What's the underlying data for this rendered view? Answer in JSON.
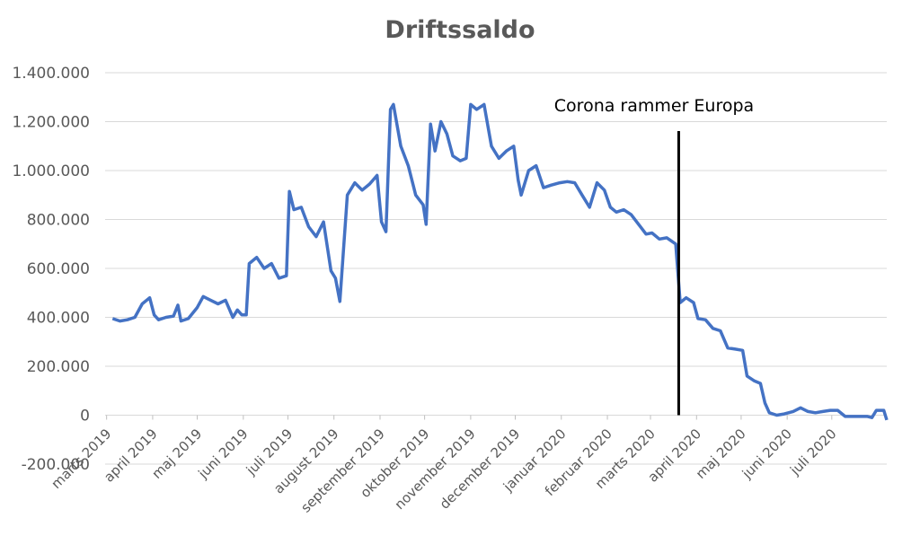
{
  "chart_data": {
    "type": "line",
    "title": "Driftssaldo",
    "xlabel": "",
    "ylabel": "",
    "ylim": [
      -200000,
      1400000
    ],
    "y_ticks": [
      1400000,
      1200000,
      1000000,
      800000,
      600000,
      400000,
      200000,
      0,
      -200000
    ],
    "y_tick_labels": [
      "1.400.000",
      "1.200.000",
      "1.000.000",
      "800.000",
      "600.000",
      "400.000",
      "200.000",
      "0",
      "-200.000"
    ],
    "x_tick_labels": [
      "marts 2019",
      "april 2019",
      "maj 2019",
      "juni 2019",
      "juli 2019",
      "august 2019",
      "september 2019",
      "oktober 2019",
      "november 2019",
      "december 2019",
      "januar 2020",
      "februar 2020",
      "marts 2020",
      "april 2020",
      "maj 2020",
      "juni 2020",
      "juli 2020"
    ],
    "grid": "horizontal",
    "line_color": "#4472C4",
    "annotation": {
      "label": "Corona rammer Europa",
      "x": "2020-03-20",
      "line_color": "#000000"
    },
    "series": [
      {
        "points": [
          [
            "2019-03-05",
            395000
          ],
          [
            "2019-03-10",
            385000
          ],
          [
            "2019-03-15",
            390000
          ],
          [
            "2019-03-20",
            400000
          ],
          [
            "2019-03-25",
            455000
          ],
          [
            "2019-03-30",
            480000
          ],
          [
            "2019-04-02",
            410000
          ],
          [
            "2019-04-05",
            390000
          ],
          [
            "2019-04-10",
            400000
          ],
          [
            "2019-04-15",
            405000
          ],
          [
            "2019-04-18",
            450000
          ],
          [
            "2019-04-20",
            385000
          ],
          [
            "2019-04-25",
            395000
          ],
          [
            "2019-05-01",
            440000
          ],
          [
            "2019-05-05",
            485000
          ],
          [
            "2019-05-10",
            470000
          ],
          [
            "2019-05-15",
            455000
          ],
          [
            "2019-05-20",
            470000
          ],
          [
            "2019-05-25",
            400000
          ],
          [
            "2019-05-28",
            430000
          ],
          [
            "2019-05-31",
            410000
          ],
          [
            "2019-06-03",
            410000
          ],
          [
            "2019-06-05",
            620000
          ],
          [
            "2019-06-10",
            645000
          ],
          [
            "2019-06-15",
            600000
          ],
          [
            "2019-06-20",
            620000
          ],
          [
            "2019-06-25",
            560000
          ],
          [
            "2019-06-30",
            570000
          ],
          [
            "2019-07-02",
            915000
          ],
          [
            "2019-07-05",
            840000
          ],
          [
            "2019-07-10",
            850000
          ],
          [
            "2019-07-15",
            770000
          ],
          [
            "2019-07-20",
            730000
          ],
          [
            "2019-07-25",
            790000
          ],
          [
            "2019-07-30",
            590000
          ],
          [
            "2019-08-02",
            560000
          ],
          [
            "2019-08-05",
            465000
          ],
          [
            "2019-08-10",
            900000
          ],
          [
            "2019-08-15",
            950000
          ],
          [
            "2019-08-20",
            920000
          ],
          [
            "2019-08-25",
            945000
          ],
          [
            "2019-08-30",
            980000
          ],
          [
            "2019-09-02",
            790000
          ],
          [
            "2019-09-05",
            750000
          ],
          [
            "2019-09-08",
            1250000
          ],
          [
            "2019-09-10",
            1270000
          ],
          [
            "2019-09-15",
            1100000
          ],
          [
            "2019-09-20",
            1020000
          ],
          [
            "2019-09-25",
            900000
          ],
          [
            "2019-09-30",
            860000
          ],
          [
            "2019-10-02",
            780000
          ],
          [
            "2019-10-05",
            1190000
          ],
          [
            "2019-10-08",
            1080000
          ],
          [
            "2019-10-12",
            1200000
          ],
          [
            "2019-10-16",
            1150000
          ],
          [
            "2019-10-20",
            1060000
          ],
          [
            "2019-10-25",
            1040000
          ],
          [
            "2019-10-29",
            1050000
          ],
          [
            "2019-11-01",
            1270000
          ],
          [
            "2019-11-05",
            1250000
          ],
          [
            "2019-11-10",
            1270000
          ],
          [
            "2019-11-15",
            1100000
          ],
          [
            "2019-11-20",
            1050000
          ],
          [
            "2019-11-25",
            1080000
          ],
          [
            "2019-11-30",
            1100000
          ],
          [
            "2019-12-03",
            960000
          ],
          [
            "2019-12-05",
            900000
          ],
          [
            "2019-12-10",
            1000000
          ],
          [
            "2019-12-15",
            1020000
          ],
          [
            "2019-12-20",
            930000
          ],
          [
            "2019-12-25",
            940000
          ],
          [
            "2019-12-31",
            950000
          ],
          [
            "2020-01-05",
            955000
          ],
          [
            "2020-01-10",
            950000
          ],
          [
            "2020-01-15",
            900000
          ],
          [
            "2020-01-20",
            850000
          ],
          [
            "2020-01-25",
            950000
          ],
          [
            "2020-01-30",
            920000
          ],
          [
            "2020-02-03",
            850000
          ],
          [
            "2020-02-07",
            830000
          ],
          [
            "2020-02-12",
            840000
          ],
          [
            "2020-02-17",
            820000
          ],
          [
            "2020-02-22",
            780000
          ],
          [
            "2020-02-27",
            740000
          ],
          [
            "2020-03-02",
            745000
          ],
          [
            "2020-03-07",
            720000
          ],
          [
            "2020-03-12",
            725000
          ],
          [
            "2020-03-18",
            700000
          ],
          [
            "2020-03-21",
            460000
          ],
          [
            "2020-03-25",
            480000
          ],
          [
            "2020-03-30",
            460000
          ],
          [
            "2020-04-02",
            395000
          ],
          [
            "2020-04-07",
            390000
          ],
          [
            "2020-04-12",
            355000
          ],
          [
            "2020-04-17",
            345000
          ],
          [
            "2020-04-22",
            275000
          ],
          [
            "2020-04-27",
            270000
          ],
          [
            "2020-05-02",
            265000
          ],
          [
            "2020-05-05",
            160000
          ],
          [
            "2020-05-10",
            140000
          ],
          [
            "2020-05-14",
            130000
          ],
          [
            "2020-05-17",
            50000
          ],
          [
            "2020-05-20",
            10000
          ],
          [
            "2020-05-25",
            0
          ],
          [
            "2020-05-30",
            5000
          ],
          [
            "2020-06-05",
            15000
          ],
          [
            "2020-06-10",
            30000
          ],
          [
            "2020-06-15",
            15000
          ],
          [
            "2020-06-20",
            10000
          ],
          [
            "2020-06-25",
            15000
          ],
          [
            "2020-06-30",
            20000
          ],
          [
            "2020-07-05",
            20000
          ],
          [
            "2020-07-10",
            -5000
          ],
          [
            "2020-07-15",
            -5000
          ],
          [
            "2020-07-20",
            -5000
          ],
          [
            "2020-07-25",
            -5000
          ],
          [
            "2020-07-28",
            -10000
          ],
          [
            "2020-07-31",
            20000
          ],
          [
            "2020-08-05",
            20000
          ],
          [
            "2020-08-07",
            -20000
          ]
        ]
      }
    ]
  }
}
